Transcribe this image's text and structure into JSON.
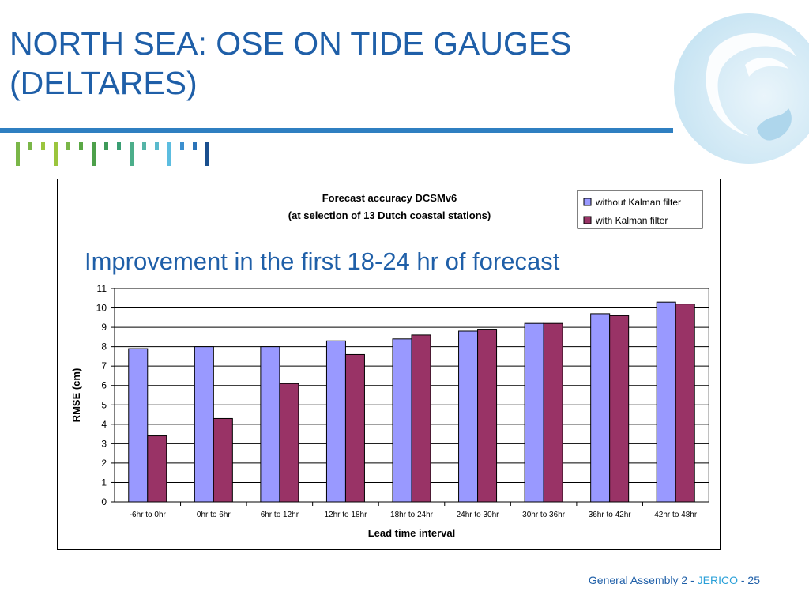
{
  "slide": {
    "title_line1": "NORTH SEA: OSE ON TIDE GAUGES",
    "title_line2": "(DELTARES)",
    "footer_prefix": "General Assembly 2 - ",
    "footer_project": "JERICO",
    "footer_suffix": " - 25",
    "colors": {
      "title": "#1f5fa8",
      "rule": "#2f7fc1",
      "footer_accent": "#2aa0d8"
    }
  },
  "chart_data": {
    "type": "bar",
    "title": "Forecast accuracy DCSMv6",
    "subtitle": "(at selection of 13 Dutch coastal stations)",
    "annotation": "Improvement in the first 18-24 hr of forecast",
    "xlabel": "Lead time interval",
    "ylabel": "RMSE (cm)",
    "ylim": [
      0,
      11
    ],
    "yticks": [
      0,
      1,
      2,
      3,
      4,
      5,
      6,
      7,
      8,
      9,
      10,
      11
    ],
    "grid": true,
    "legend_position": "top-right",
    "categories": [
      "-6hr to 0hr",
      "0hr to 6hr",
      "6hr to 12hr",
      "12hr to 18hr",
      "18hr to 24hr",
      "24hr to 30hr",
      "30hr to 36hr",
      "36hr to 42hr",
      "42hr to 48hr"
    ],
    "series": [
      {
        "name": "without Kalman filter",
        "color": "#9999ff",
        "values": [
          7.9,
          8.0,
          8.0,
          8.3,
          8.4,
          8.8,
          9.2,
          9.7,
          10.3
        ]
      },
      {
        "name": "with Kalman filter",
        "color": "#993366",
        "values": [
          3.4,
          4.3,
          6.1,
          7.6,
          8.6,
          8.9,
          9.2,
          9.6,
          10.2
        ]
      }
    ]
  }
}
